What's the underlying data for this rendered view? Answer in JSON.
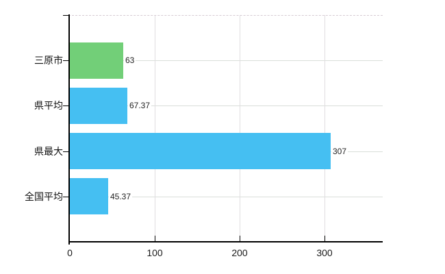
{
  "chart_data": {
    "type": "bar",
    "orientation": "horizontal",
    "title": "",
    "xlabel": "",
    "ylabel": "",
    "categories": [
      "三原市",
      "県平均",
      "県最大",
      "全国平均"
    ],
    "values": [
      63,
      67.37,
      307,
      45.37
    ],
    "value_labels": [
      "63",
      "67.37",
      "307",
      "45.37"
    ],
    "bar_colors": [
      "#72cf78",
      "#45bff2",
      "#45bff2",
      "#45bff2"
    ],
    "x_ticks": [
      0,
      100,
      200,
      300
    ],
    "x_tick_labels": [
      "0",
      "100",
      "200",
      "300"
    ],
    "xlim": [
      0,
      368
    ],
    "grid": true,
    "legend": "none"
  },
  "colors": {
    "background": "#ffffff",
    "axis": "#000000",
    "grid_horizontal": "#d9ded9",
    "grid_vertical": "#e0dde0",
    "top_border_dashed": "#d6cbd3",
    "text": "#1a1a1a",
    "bar_green": "#72cf78",
    "bar_blue": "#45bff2"
  }
}
